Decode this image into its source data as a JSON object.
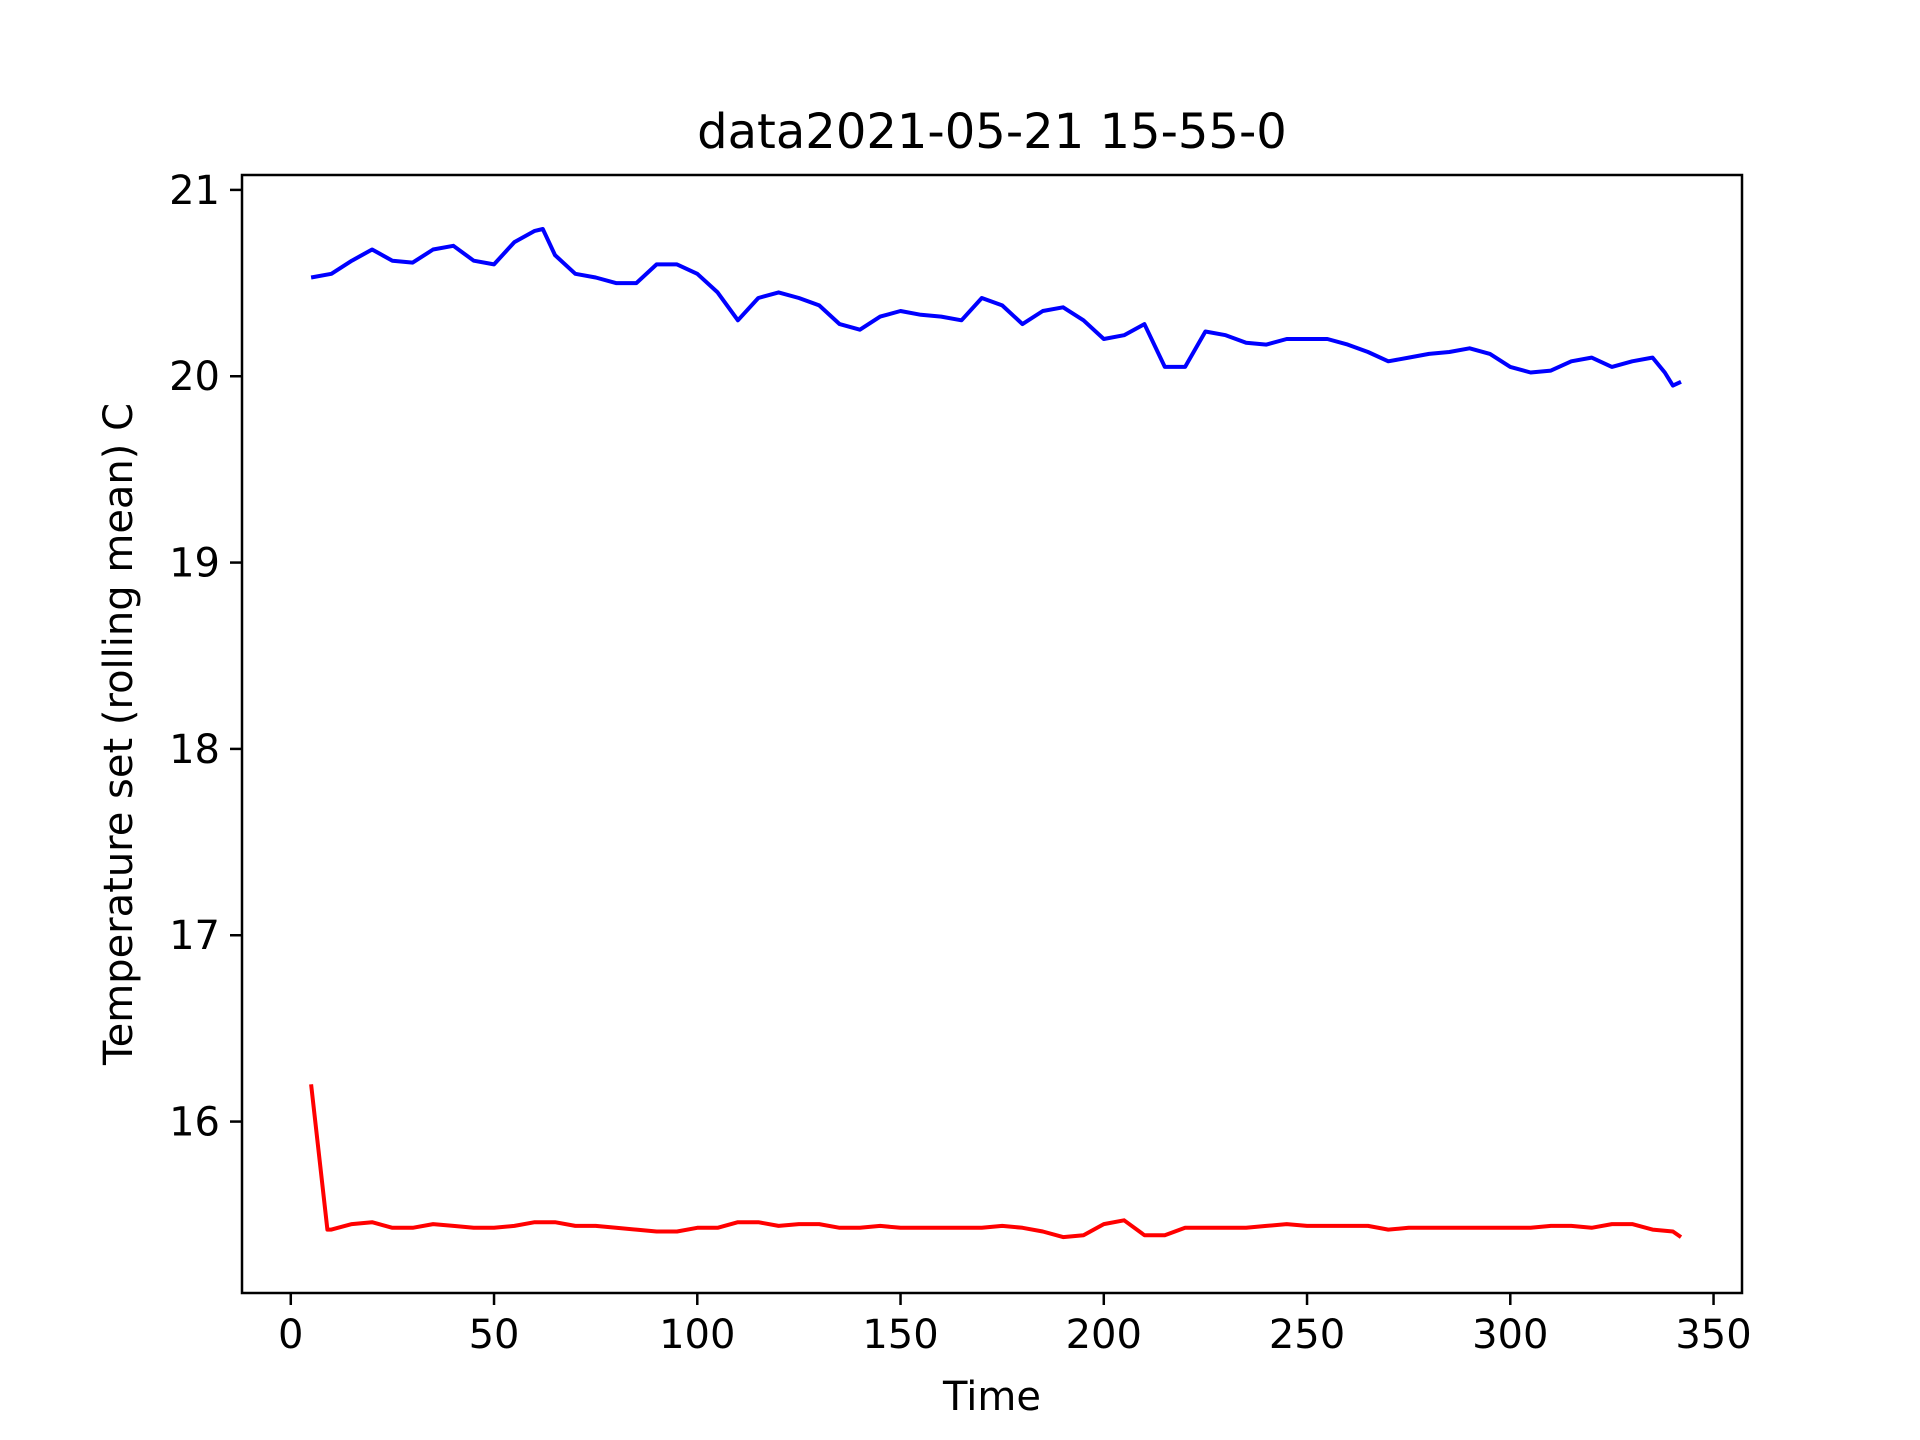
{
  "chart_data": {
    "type": "line",
    "title": "data2021-05-21 15-55-0",
    "xlabel": "Time",
    "ylabel": "Temperature set (rolling mean) C",
    "xlim": [
      -12,
      357
    ],
    "ylim": [
      15.08,
      21.08
    ],
    "xticks": [
      0,
      50,
      100,
      150,
      200,
      250,
      300,
      350
    ],
    "yticks": [
      16,
      17,
      18,
      19,
      20,
      21
    ],
    "grid": false,
    "legend": "none",
    "series": [
      {
        "color": "#0000ff",
        "x": [
          5,
          10,
          15,
          20,
          25,
          30,
          35,
          40,
          45,
          50,
          55,
          60,
          62,
          65,
          70,
          75,
          80,
          85,
          90,
          95,
          100,
          105,
          110,
          115,
          120,
          125,
          130,
          135,
          140,
          145,
          150,
          155,
          160,
          165,
          170,
          175,
          180,
          185,
          190,
          195,
          200,
          205,
          210,
          215,
          220,
          225,
          230,
          235,
          240,
          245,
          250,
          255,
          260,
          265,
          270,
          275,
          280,
          285,
          290,
          295,
          300,
          305,
          310,
          315,
          320,
          325,
          330,
          335,
          338,
          340,
          342
        ],
        "y": [
          20.53,
          20.55,
          20.62,
          20.68,
          20.62,
          20.61,
          20.68,
          20.7,
          20.62,
          20.6,
          20.72,
          20.78,
          20.79,
          20.65,
          20.55,
          20.53,
          20.5,
          20.5,
          20.6,
          20.6,
          20.55,
          20.45,
          20.3,
          20.42,
          20.45,
          20.42,
          20.38,
          20.28,
          20.25,
          20.32,
          20.35,
          20.33,
          20.32,
          20.3,
          20.42,
          20.38,
          20.28,
          20.35,
          20.37,
          20.3,
          20.2,
          20.22,
          20.28,
          20.05,
          20.05,
          20.24,
          20.22,
          20.18,
          20.17,
          20.2,
          20.2,
          20.2,
          20.17,
          20.13,
          20.08,
          20.1,
          20.12,
          20.13,
          20.15,
          20.12,
          20.05,
          20.02,
          20.03,
          20.08,
          20.1,
          20.05,
          20.08,
          20.1,
          20.02,
          19.95,
          19.97
        ]
      },
      {
        "color": "#ff0000",
        "x": [
          5,
          9,
          10,
          15,
          20,
          25,
          30,
          35,
          40,
          45,
          50,
          55,
          60,
          65,
          70,
          75,
          80,
          85,
          90,
          95,
          100,
          105,
          110,
          115,
          120,
          125,
          130,
          135,
          140,
          145,
          150,
          155,
          160,
          165,
          170,
          175,
          180,
          185,
          190,
          195,
          200,
          205,
          210,
          215,
          220,
          225,
          230,
          235,
          240,
          245,
          250,
          255,
          260,
          265,
          270,
          275,
          280,
          285,
          290,
          295,
          300,
          305,
          310,
          315,
          320,
          325,
          330,
          335,
          340,
          342
        ],
        "y": [
          16.2,
          15.42,
          15.42,
          15.45,
          15.46,
          15.43,
          15.43,
          15.45,
          15.44,
          15.43,
          15.43,
          15.44,
          15.46,
          15.46,
          15.44,
          15.44,
          15.43,
          15.42,
          15.41,
          15.41,
          15.43,
          15.43,
          15.46,
          15.46,
          15.44,
          15.45,
          15.45,
          15.43,
          15.43,
          15.44,
          15.43,
          15.43,
          15.43,
          15.43,
          15.43,
          15.44,
          15.43,
          15.41,
          15.38,
          15.39,
          15.45,
          15.47,
          15.39,
          15.39,
          15.43,
          15.43,
          15.43,
          15.43,
          15.44,
          15.45,
          15.44,
          15.44,
          15.44,
          15.44,
          15.42,
          15.43,
          15.43,
          15.43,
          15.43,
          15.43,
          15.43,
          15.43,
          15.44,
          15.44,
          15.43,
          15.45,
          15.45,
          15.42,
          15.41,
          15.38
        ]
      }
    ]
  }
}
